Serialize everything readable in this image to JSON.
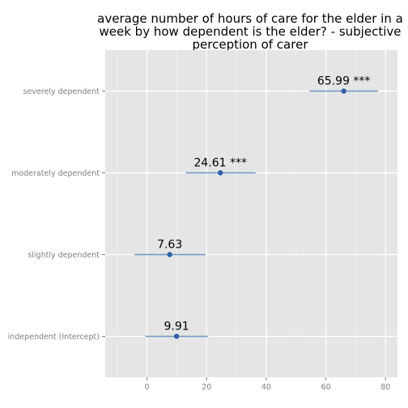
{
  "chart_data": {
    "type": "scatter",
    "title_lines": [
      "average number of hours of care for the elder in a",
      "week by how dependent is the elder? - subjective",
      "perception of carer"
    ],
    "xlabel": "",
    "ylabel": "",
    "xlim": [
      -14,
      84
    ],
    "x_ticks": [
      0,
      20,
      40,
      60,
      80
    ],
    "x_tick_labels": [
      "0",
      "20",
      "40",
      "60",
      "80"
    ],
    "grid": true,
    "categories": [
      "severely dependent",
      "moderately dependent",
      "slightly dependent",
      "independent (Intercept)"
    ],
    "points": [
      {
        "category": "severely dependent",
        "estimate": 65.99,
        "ci_low": 54.5,
        "ci_high": 77.5,
        "label": "65.99 ***"
      },
      {
        "category": "moderately dependent",
        "estimate": 24.61,
        "ci_low": 13.0,
        "ci_high": 36.4,
        "label": "24.61 ***"
      },
      {
        "category": "slightly dependent",
        "estimate": 7.63,
        "ci_low": -4.2,
        "ci_high": 19.6,
        "label": "7.63"
      },
      {
        "category": "independent (Intercept)",
        "estimate": 9.91,
        "ci_low": -0.6,
        "ci_high": 20.4,
        "label": "9.91"
      }
    ],
    "colors": {
      "panel_background": "#e5e5e5",
      "grid_major": "#ffffff",
      "grid_minor": "#f2f2f2",
      "point": "#3060a8",
      "errorbar": "#6f94c4"
    }
  }
}
